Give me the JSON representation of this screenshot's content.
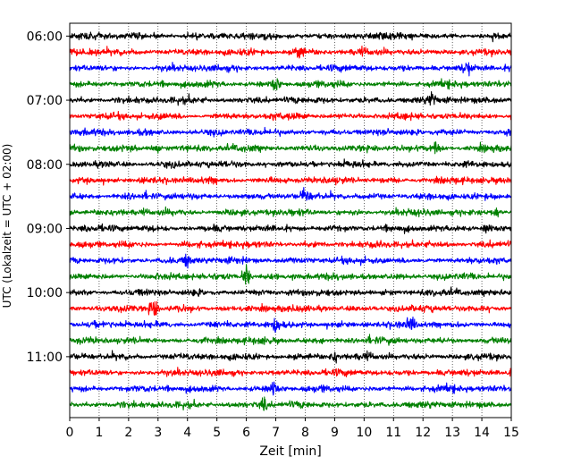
{
  "chart_data": {
    "type": "line",
    "title": "",
    "xlabel": "Zeit  [min]",
    "ylabel": "UTC (Lokalzeit = UTC + 02:00)",
    "xlim": [
      0,
      15
    ],
    "x_ticks": [
      0,
      1,
      2,
      3,
      4,
      5,
      6,
      7,
      8,
      9,
      10,
      11,
      12,
      13,
      14,
      15
    ],
    "ylim_hours": [
      5.8,
      11.95
    ],
    "y_ticks": [
      {
        "hour": 6,
        "label": "06:00"
      },
      {
        "hour": 7,
        "label": "07:00"
      },
      {
        "hour": 8,
        "label": "08:00"
      },
      {
        "hour": 9,
        "label": "09:00"
      },
      {
        "hour": 10,
        "label": "10:00"
      },
      {
        "hour": 11,
        "label": "11:00"
      }
    ],
    "grid": "vertical dotted at each minute",
    "trace_interval_minutes": 15,
    "trace_colors": [
      "#000000",
      "#ff0000",
      "#0000ff",
      "#008000"
    ],
    "traces": [
      {
        "start": "06:00",
        "color": "#000000"
      },
      {
        "start": "06:15",
        "color": "#ff0000"
      },
      {
        "start": "06:30",
        "color": "#0000ff"
      },
      {
        "start": "06:45",
        "color": "#008000"
      },
      {
        "start": "07:00",
        "color": "#000000"
      },
      {
        "start": "07:15",
        "color": "#ff0000"
      },
      {
        "start": "07:30",
        "color": "#0000ff"
      },
      {
        "start": "07:45",
        "color": "#008000"
      },
      {
        "start": "08:00",
        "color": "#000000"
      },
      {
        "start": "08:15",
        "color": "#ff0000"
      },
      {
        "start": "08:30",
        "color": "#0000ff"
      },
      {
        "start": "08:45",
        "color": "#008000"
      },
      {
        "start": "09:00",
        "color": "#000000"
      },
      {
        "start": "09:15",
        "color": "#ff0000"
      },
      {
        "start": "09:30",
        "color": "#0000ff"
      },
      {
        "start": "09:45",
        "color": "#008000"
      },
      {
        "start": "10:00",
        "color": "#000000"
      },
      {
        "start": "10:15",
        "color": "#ff0000"
      },
      {
        "start": "10:30",
        "color": "#0000ff"
      },
      {
        "start": "10:45",
        "color": "#008000"
      },
      {
        "start": "11:00",
        "color": "#000000"
      },
      {
        "start": "11:15",
        "color": "#ff0000"
      },
      {
        "start": "11:30",
        "color": "#0000ff"
      },
      {
        "start": "11:45",
        "color": "#008000"
      }
    ],
    "events": [
      {
        "trace": "06:15",
        "minute": 7.8,
        "strength": 1.3
      },
      {
        "trace": "06:30",
        "minute": 13.5,
        "strength": 1.1
      },
      {
        "trace": "06:45",
        "minute": 7.0,
        "strength": 1.0
      },
      {
        "trace": "07:00",
        "minute": 12.3,
        "strength": 1.2
      },
      {
        "trace": "07:45",
        "minute": 2.9,
        "strength": 1.2
      },
      {
        "trace": "07:45",
        "minute": 12.4,
        "strength": 1.0
      },
      {
        "trace": "08:30",
        "minute": 8.0,
        "strength": 1.1
      },
      {
        "trace": "08:45",
        "minute": 14.5,
        "strength": 1.0
      },
      {
        "trace": "09:00",
        "minute": 14.2,
        "strength": 1.0
      },
      {
        "trace": "09:30",
        "minute": 4.0,
        "strength": 1.0
      },
      {
        "trace": "09:45",
        "minute": 6.0,
        "strength": 2.2
      },
      {
        "trace": "10:15",
        "minute": 2.85,
        "strength": 2.8
      },
      {
        "trace": "10:30",
        "minute": 11.6,
        "strength": 1.2
      },
      {
        "trace": "10:30",
        "minute": 7.0,
        "strength": 1.2
      },
      {
        "trace": "11:00",
        "minute": 9.0,
        "strength": 1.0
      },
      {
        "trace": "11:30",
        "minute": 6.9,
        "strength": 1.2
      },
      {
        "trace": "11:45",
        "minute": 6.6,
        "strength": 1.0
      }
    ]
  }
}
